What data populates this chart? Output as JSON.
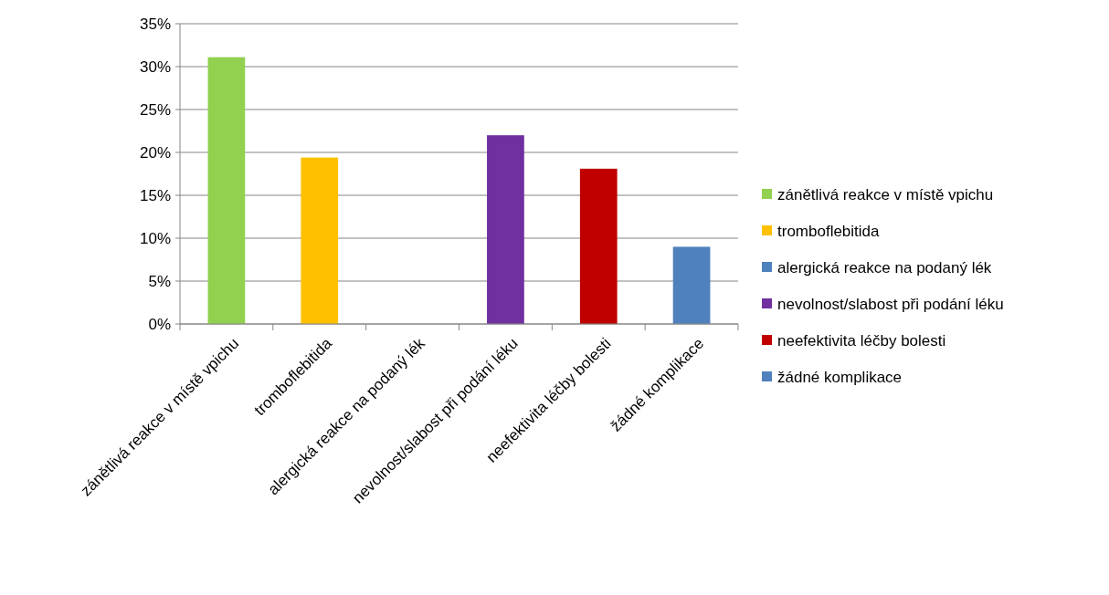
{
  "chart_data": {
    "type": "bar",
    "stacked": true,
    "categories": [
      "zánětlivá reakce v místě vpichu",
      "tromboflebitida",
      "alergická reakce na podaný lék",
      "nevolnost/slabost při podání léku",
      "neefektivita léčby bolesti",
      "žádné komplikace"
    ],
    "series": [
      {
        "name": "zánětlivá reakce v místě vpichu",
        "color": "#92d050",
        "values": [
          31.1,
          null,
          null,
          null,
          null,
          null
        ]
      },
      {
        "name": "tromboflebitida",
        "color": "#ffc000",
        "values": [
          null,
          19.4,
          null,
          null,
          null,
          null
        ]
      },
      {
        "name": "alergická reakce na podaný lék",
        "color": "#4f81bd",
        "values": [
          null,
          null,
          0,
          null,
          null,
          null
        ]
      },
      {
        "name": "nevolnost/slabost při podání léku",
        "color": "#7030a0",
        "values": [
          null,
          null,
          null,
          22.0,
          null,
          null
        ]
      },
      {
        "name": "neefektivita léčby bolesti",
        "color": "#c00000",
        "values": [
          null,
          null,
          null,
          null,
          18.1,
          null
        ]
      },
      {
        "name": "žádné komplikace",
        "color": "#4f81bd",
        "values": [
          null,
          null,
          null,
          null,
          null,
          9.0
        ]
      }
    ],
    "ylim": [
      0,
      35
    ],
    "yticks": [
      {
        "value": 0,
        "label": "0%"
      },
      {
        "value": 5,
        "label": "5%"
      },
      {
        "value": 10,
        "label": "10%"
      },
      {
        "value": 15,
        "label": "15%"
      },
      {
        "value": 20,
        "label": "20%"
      },
      {
        "value": 25,
        "label": "25%"
      },
      {
        "value": 30,
        "label": "30%"
      },
      {
        "value": 35,
        "label": "35%"
      }
    ],
    "grid": "y",
    "legend": "right"
  }
}
